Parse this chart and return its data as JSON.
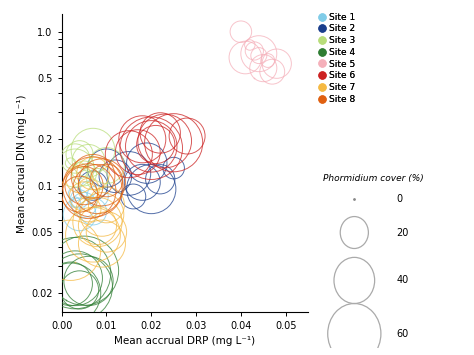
{
  "xlabel": "Mean accrual DRP (mg L⁻¹)",
  "ylabel": "Mean accrual DIN (mg L⁻¹)",
  "xlim": [
    0.0,
    0.055
  ],
  "ylim_log": [
    0.015,
    1.3
  ],
  "xticks": [
    0.0,
    0.01,
    0.02,
    0.03,
    0.04,
    0.05
  ],
  "yticks": [
    0.02,
    0.05,
    0.1,
    0.2,
    0.5,
    1.0
  ],
  "ytick_labels": [
    "0.02",
    "0.05",
    "0.1",
    "0.2",
    "0.5",
    "1.0"
  ],
  "site_colors": {
    "Site 1": "#80cce8",
    "Site 2": "#1a3e8c",
    "Site 3": "#b8dd7a",
    "Site 4": "#2e7d32",
    "Site 5": "#f5b0ba",
    "Site 6": "#cc2222",
    "Site 7": "#f5b942",
    "Site 8": "#e06010"
  },
  "data": [
    {
      "site": "Site 1",
      "drp": 0.003,
      "din": 0.088,
      "cover": 8
    },
    {
      "site": "Site 1",
      "drp": 0.004,
      "din": 0.082,
      "cover": 12
    },
    {
      "site": "Site 1",
      "drp": 0.005,
      "din": 0.075,
      "cover": 18
    },
    {
      "site": "Site 1",
      "drp": 0.006,
      "din": 0.095,
      "cover": 10
    },
    {
      "site": "Site 1",
      "drp": 0.007,
      "din": 0.068,
      "cover": 20
    },
    {
      "site": "Site 1",
      "drp": 0.008,
      "din": 0.085,
      "cover": 15
    },
    {
      "site": "Site 1",
      "drp": 0.004,
      "din": 0.065,
      "cover": 25
    },
    {
      "site": "Site 1",
      "drp": 0.005,
      "din": 0.072,
      "cover": 0
    },
    {
      "site": "Site 1",
      "drp": 0.003,
      "din": 0.078,
      "cover": 5
    },
    {
      "site": "Site 2",
      "drp": 0.007,
      "din": 0.1,
      "cover": 22
    },
    {
      "site": "Site 2",
      "drp": 0.01,
      "din": 0.13,
      "cover": 30
    },
    {
      "site": "Site 2",
      "drp": 0.012,
      "din": 0.115,
      "cover": 25
    },
    {
      "site": "Site 2",
      "drp": 0.015,
      "din": 0.12,
      "cover": 35
    },
    {
      "site": "Site 2",
      "drp": 0.018,
      "din": 0.105,
      "cover": 28
    },
    {
      "site": "Site 2",
      "drp": 0.02,
      "din": 0.095,
      "cover": 40
    },
    {
      "site": "Site 2",
      "drp": 0.022,
      "din": 0.11,
      "cover": 22
    },
    {
      "site": "Site 2",
      "drp": 0.025,
      "din": 0.13,
      "cover": 15
    },
    {
      "site": "Site 2",
      "drp": 0.016,
      "din": 0.085,
      "cover": 18
    },
    {
      "site": "Site 2",
      "drp": 0.019,
      "din": 0.14,
      "cover": 32
    },
    {
      "site": "Site 3",
      "drp": 0.003,
      "din": 0.13,
      "cover": 30
    },
    {
      "site": "Site 3",
      "drp": 0.004,
      "din": 0.16,
      "cover": 20
    },
    {
      "site": "Site 3",
      "drp": 0.006,
      "din": 0.145,
      "cover": 25
    },
    {
      "site": "Site 3",
      "drp": 0.005,
      "din": 0.12,
      "cover": 18
    },
    {
      "site": "Site 3",
      "drp": 0.007,
      "din": 0.17,
      "cover": 35
    },
    {
      "site": "Site 3",
      "drp": 0.008,
      "din": 0.11,
      "cover": 15
    },
    {
      "site": "Site 3",
      "drp": 0.003,
      "din": 0.15,
      "cover": 22
    },
    {
      "site": "Site 3",
      "drp": 0.01,
      "din": 0.135,
      "cover": 28
    },
    {
      "site": "Site 3",
      "drp": 0.004,
      "din": 0.125,
      "cover": 10
    },
    {
      "site": "Site 3",
      "drp": 0.002,
      "din": 0.14,
      "cover": 5
    },
    {
      "site": "Site 4",
      "drp": 0.002,
      "din": 0.023,
      "cover": 35
    },
    {
      "site": "Site 4",
      "drp": 0.003,
      "din": 0.025,
      "cover": 45
    },
    {
      "site": "Site 4",
      "drp": 0.004,
      "din": 0.022,
      "cover": 55
    },
    {
      "site": "Site 4",
      "drp": 0.005,
      "din": 0.028,
      "cover": 58
    },
    {
      "site": "Site 4",
      "drp": 0.006,
      "din": 0.024,
      "cover": 40
    },
    {
      "site": "Site 4",
      "drp": 0.002,
      "din": 0.02,
      "cover": 50
    },
    {
      "site": "Site 4",
      "drp": 0.003,
      "din": 0.027,
      "cover": 60
    },
    {
      "site": "Site 4",
      "drp": 0.004,
      "din": 0.021,
      "cover": 30
    },
    {
      "site": "Site 4",
      "drp": 0.001,
      "din": 0.018,
      "cover": 0
    },
    {
      "site": "Site 5",
      "drp": 0.04,
      "din": 1.0,
      "cover": 15
    },
    {
      "site": "Site 5",
      "drp": 0.042,
      "din": 0.82,
      "cover": 5
    },
    {
      "site": "Site 5",
      "drp": 0.044,
      "din": 0.7,
      "cover": 10
    },
    {
      "site": "Site 5",
      "drp": 0.046,
      "din": 0.65,
      "cover": 8
    },
    {
      "site": "Site 5",
      "drp": 0.043,
      "din": 0.75,
      "cover": 12
    },
    {
      "site": "Site 5",
      "drp": 0.045,
      "din": 0.58,
      "cover": 20
    },
    {
      "site": "Site 5",
      "drp": 0.041,
      "din": 0.68,
      "cover": 25
    },
    {
      "site": "Site 5",
      "drp": 0.047,
      "din": 0.55,
      "cover": 18
    },
    {
      "site": "Site 5",
      "drp": 0.048,
      "din": 0.62,
      "cover": 22
    },
    {
      "site": "Site 5",
      "drp": 0.044,
      "din": 0.72,
      "cover": 28
    },
    {
      "site": "Site 5",
      "drp": 0.043,
      "din": 0.5,
      "cover": 0
    },
    {
      "site": "Site 6",
      "drp": 0.018,
      "din": 0.2,
      "cover": 38
    },
    {
      "site": "Site 6",
      "drp": 0.02,
      "din": 0.18,
      "cover": 42
    },
    {
      "site": "Site 6",
      "drp": 0.022,
      "din": 0.22,
      "cover": 32
    },
    {
      "site": "Site 6",
      "drp": 0.025,
      "din": 0.19,
      "cover": 48
    },
    {
      "site": "Site 6",
      "drp": 0.015,
      "din": 0.16,
      "cover": 38
    },
    {
      "site": "Site 6",
      "drp": 0.028,
      "din": 0.21,
      "cover": 28
    },
    {
      "site": "Site 6",
      "drp": 0.02,
      "din": 0.175,
      "cover": 52
    },
    {
      "site": "Site 6",
      "drp": 0.023,
      "din": 0.195,
      "cover": 44
    },
    {
      "site": "Site 6",
      "drp": 0.017,
      "din": 0.165,
      "cover": 36
    },
    {
      "site": "Site 6",
      "drp": 0.021,
      "din": 0.185,
      "cover": 30
    },
    {
      "site": "Site 6",
      "drp": 0.019,
      "din": 0.145,
      "cover": 0
    },
    {
      "site": "Site 7",
      "drp": 0.004,
      "din": 0.11,
      "cover": 20
    },
    {
      "site": "Site 7",
      "drp": 0.006,
      "din": 0.095,
      "cover": 15
    },
    {
      "site": "Site 7",
      "drp": 0.007,
      "din": 0.12,
      "cover": 25
    },
    {
      "site": "Site 7",
      "drp": 0.008,
      "din": 0.055,
      "cover": 30
    },
    {
      "site": "Site 7",
      "drp": 0.009,
      "din": 0.065,
      "cover": 35
    },
    {
      "site": "Site 7",
      "drp": 0.01,
      "din": 0.075,
      "cover": 28
    },
    {
      "site": "Site 7",
      "drp": 0.008,
      "din": 0.058,
      "cover": 40
    },
    {
      "site": "Site 7",
      "drp": 0.007,
      "din": 0.048,
      "cover": 45
    },
    {
      "site": "Site 7",
      "drp": 0.009,
      "din": 0.042,
      "cover": 38
    },
    {
      "site": "Site 7",
      "drp": 0.005,
      "din": 0.085,
      "cover": 22
    },
    {
      "site": "Site 7",
      "drp": 0.006,
      "din": 0.07,
      "cover": 18
    },
    {
      "site": "Site 7",
      "drp": 0.01,
      "din": 0.05,
      "cover": 32
    },
    {
      "site": "Site 7",
      "drp": 0.002,
      "din": 0.038,
      "cover": 50
    },
    {
      "site": "Site 7",
      "drp": 0.003,
      "din": 0.032,
      "cover": 0
    },
    {
      "site": "Site 8",
      "drp": 0.005,
      "din": 0.1,
      "cover": 30
    },
    {
      "site": "Site 8",
      "drp": 0.007,
      "din": 0.115,
      "cover": 35
    },
    {
      "site": "Site 8",
      "drp": 0.008,
      "din": 0.095,
      "cover": 40
    },
    {
      "site": "Site 8",
      "drp": 0.01,
      "din": 0.108,
      "cover": 25
    },
    {
      "site": "Site 8",
      "drp": 0.006,
      "din": 0.092,
      "cover": 45
    },
    {
      "site": "Site 8",
      "drp": 0.009,
      "din": 0.105,
      "cover": 38
    },
    {
      "site": "Site 8",
      "drp": 0.007,
      "din": 0.098,
      "cover": 50
    },
    {
      "site": "Site 8",
      "drp": 0.004,
      "din": 0.088,
      "cover": 28
    }
  ]
}
